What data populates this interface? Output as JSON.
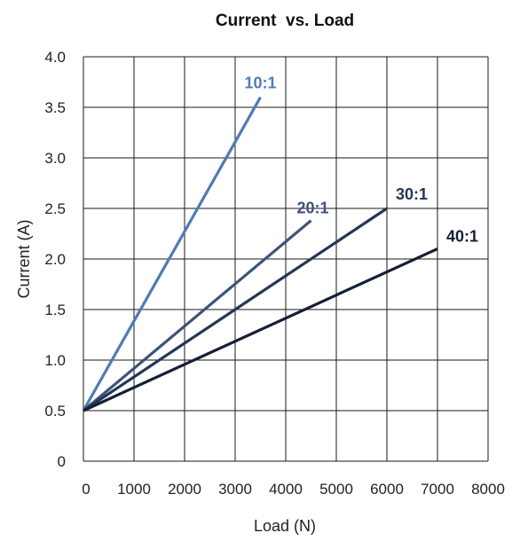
{
  "chart_data": {
    "type": "line",
    "title": "Current  vs. Load",
    "xlabel": "Load (N)",
    "ylabel": "Current (A)",
    "xlim": [
      0,
      8000
    ],
    "ylim": [
      0,
      4.0
    ],
    "x_ticks": [
      "0",
      "1000",
      "2000",
      "3000",
      "4000",
      "5000",
      "6000",
      "7000",
      "8000"
    ],
    "y_ticks": [
      "0",
      "0.5",
      "1.0",
      "1.5",
      "2.0",
      "2.5",
      "3.0",
      "3.5",
      "4.0"
    ],
    "grid": true,
    "legend": "none (series labeled at line ends)",
    "series": [
      {
        "name": "10:1",
        "color": "#4f7bb5",
        "x": [
          0,
          3500
        ],
        "y": [
          0.5,
          3.6
        ]
      },
      {
        "name": "20:1",
        "color": "#3d5478",
        "x": [
          0,
          4500
        ],
        "y": [
          0.5,
          2.38
        ]
      },
      {
        "name": "30:1",
        "color": "#243656",
        "x": [
          0,
          6000
        ],
        "y": [
          0.5,
          2.5
        ]
      },
      {
        "name": "40:1",
        "color": "#141f36",
        "x": [
          0,
          7000
        ],
        "y": [
          0.5,
          2.1
        ]
      }
    ]
  }
}
